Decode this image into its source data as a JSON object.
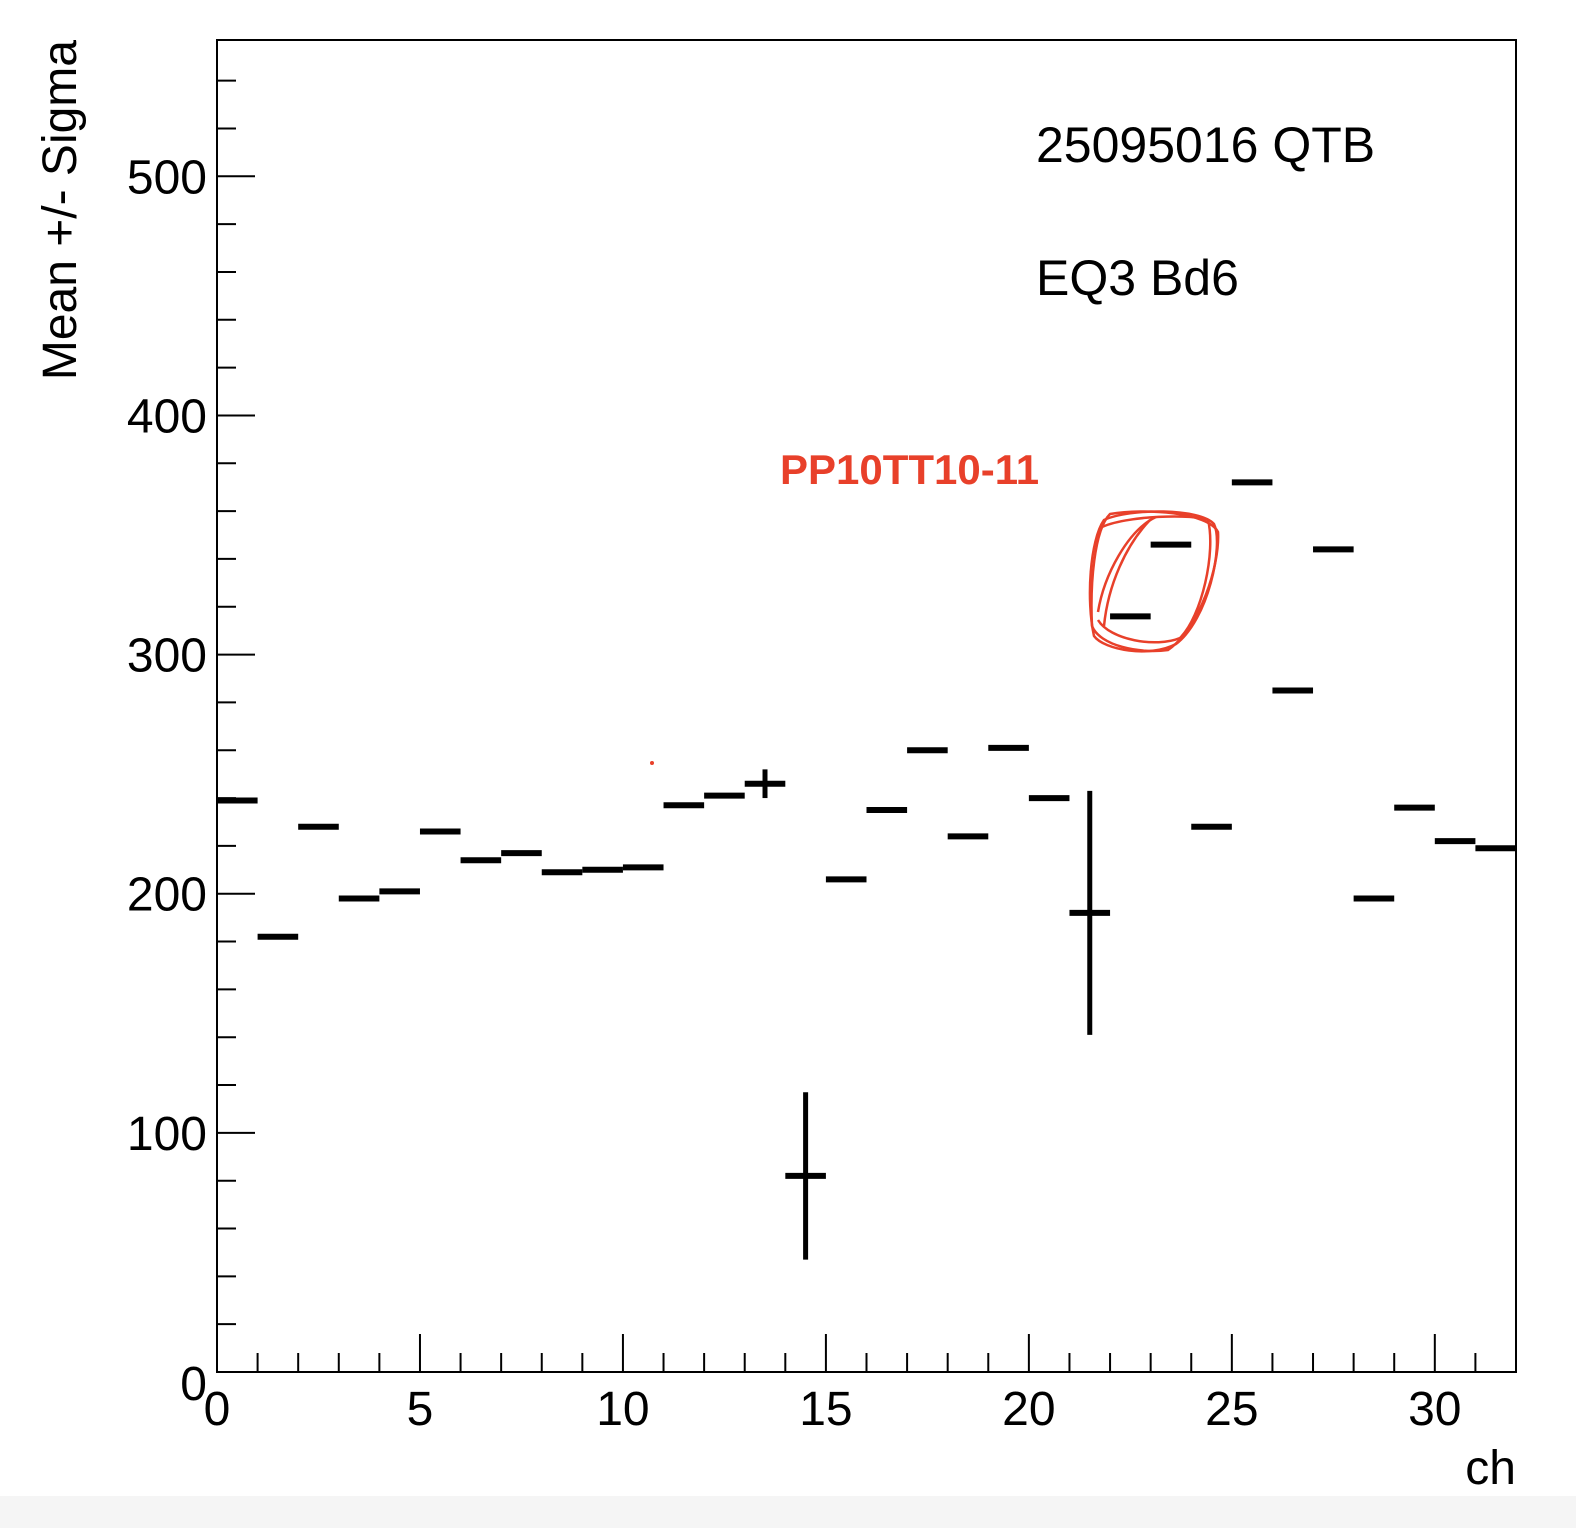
{
  "chart_data": {
    "type": "errorbar",
    "xlabel": "ch",
    "ylabel": "Mean +/- Sigma",
    "xlim": [
      0,
      32
    ],
    "ylim": [
      0,
      557
    ],
    "x_ticks": [
      0,
      5,
      10,
      15,
      20,
      25,
      30
    ],
    "y_ticks": [
      0,
      100,
      200,
      300,
      400,
      500
    ],
    "bin_width": 1,
    "annotations": [
      "25095016 QTB",
      "EQ3 Bd6"
    ],
    "handwritten_note": {
      "text": "PP10TT10-11",
      "color": "#e8402a",
      "circled_channels": [
        22,
        23
      ]
    },
    "points": [
      {
        "ch": 0,
        "mean": 239,
        "sigma": 0
      },
      {
        "ch": 1,
        "mean": 182,
        "sigma": 0
      },
      {
        "ch": 2,
        "mean": 228,
        "sigma": 0
      },
      {
        "ch": 3,
        "mean": 198,
        "sigma": 0
      },
      {
        "ch": 4,
        "mean": 201,
        "sigma": 0
      },
      {
        "ch": 5,
        "mean": 226,
        "sigma": 0
      },
      {
        "ch": 6,
        "mean": 214,
        "sigma": 0
      },
      {
        "ch": 7,
        "mean": 217,
        "sigma": 0
      },
      {
        "ch": 8,
        "mean": 209,
        "sigma": 0
      },
      {
        "ch": 9,
        "mean": 210,
        "sigma": 0
      },
      {
        "ch": 10,
        "mean": 211,
        "sigma": 0
      },
      {
        "ch": 11,
        "mean": 237,
        "sigma": 0
      },
      {
        "ch": 12,
        "mean": 241,
        "sigma": 0
      },
      {
        "ch": 13,
        "mean": 246,
        "sigma": 6
      },
      {
        "ch": 14,
        "mean": 82,
        "sigma": 35
      },
      {
        "ch": 15,
        "mean": 206,
        "sigma": 0
      },
      {
        "ch": 16,
        "mean": 235,
        "sigma": 0
      },
      {
        "ch": 17,
        "mean": 260,
        "sigma": 0
      },
      {
        "ch": 18,
        "mean": 224,
        "sigma": 0
      },
      {
        "ch": 19,
        "mean": 261,
        "sigma": 0
      },
      {
        "ch": 20,
        "mean": 240,
        "sigma": 0
      },
      {
        "ch": 21,
        "mean": 192,
        "sigma": 51
      },
      {
        "ch": 22,
        "mean": 316,
        "sigma": 0
      },
      {
        "ch": 23,
        "mean": 346,
        "sigma": 0
      },
      {
        "ch": 24,
        "mean": 228,
        "sigma": 0
      },
      {
        "ch": 25,
        "mean": 372,
        "sigma": 0
      },
      {
        "ch": 26,
        "mean": 285,
        "sigma": 0
      },
      {
        "ch": 27,
        "mean": 344,
        "sigma": 0
      },
      {
        "ch": 28,
        "mean": 198,
        "sigma": 0
      },
      {
        "ch": 29,
        "mean": 236,
        "sigma": 0
      },
      {
        "ch": 30,
        "mean": 222,
        "sigma": 0
      },
      {
        "ch": 31,
        "mean": 219,
        "sigma": 0
      }
    ]
  }
}
